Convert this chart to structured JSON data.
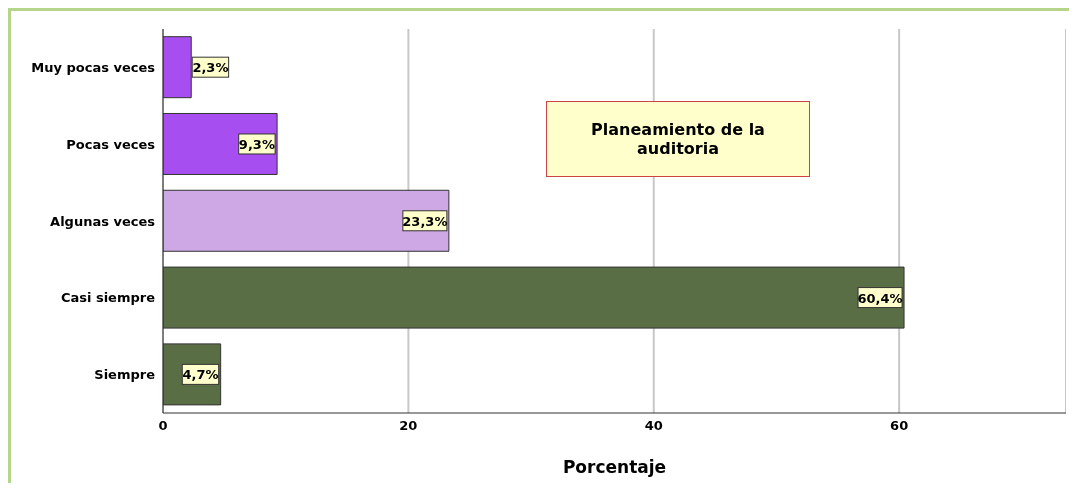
{
  "chart_data": {
    "type": "bar",
    "orientation": "horizontal",
    "title": "Planeamiento de la auditoria",
    "xlabel": "Porcentaje",
    "categories": [
      "Muy pocas veces",
      "Pocas veces",
      "Algunas veces",
      "Casi siempre",
      "Siempre"
    ],
    "values": [
      2.3,
      9.3,
      23.3,
      60.4,
      4.7
    ],
    "colors": [
      "#a64ef0",
      "#a64ef0",
      "#cda8e4",
      "#5a6e46",
      "#5a6e46"
    ],
    "value_labels": [
      "2,3%",
      "9,3%",
      "23,3%",
      "60,4%",
      "4,7%"
    ],
    "xlim": [
      0,
      73.6
    ],
    "xticks": [
      0,
      20,
      40,
      60
    ],
    "grid": "x"
  }
}
